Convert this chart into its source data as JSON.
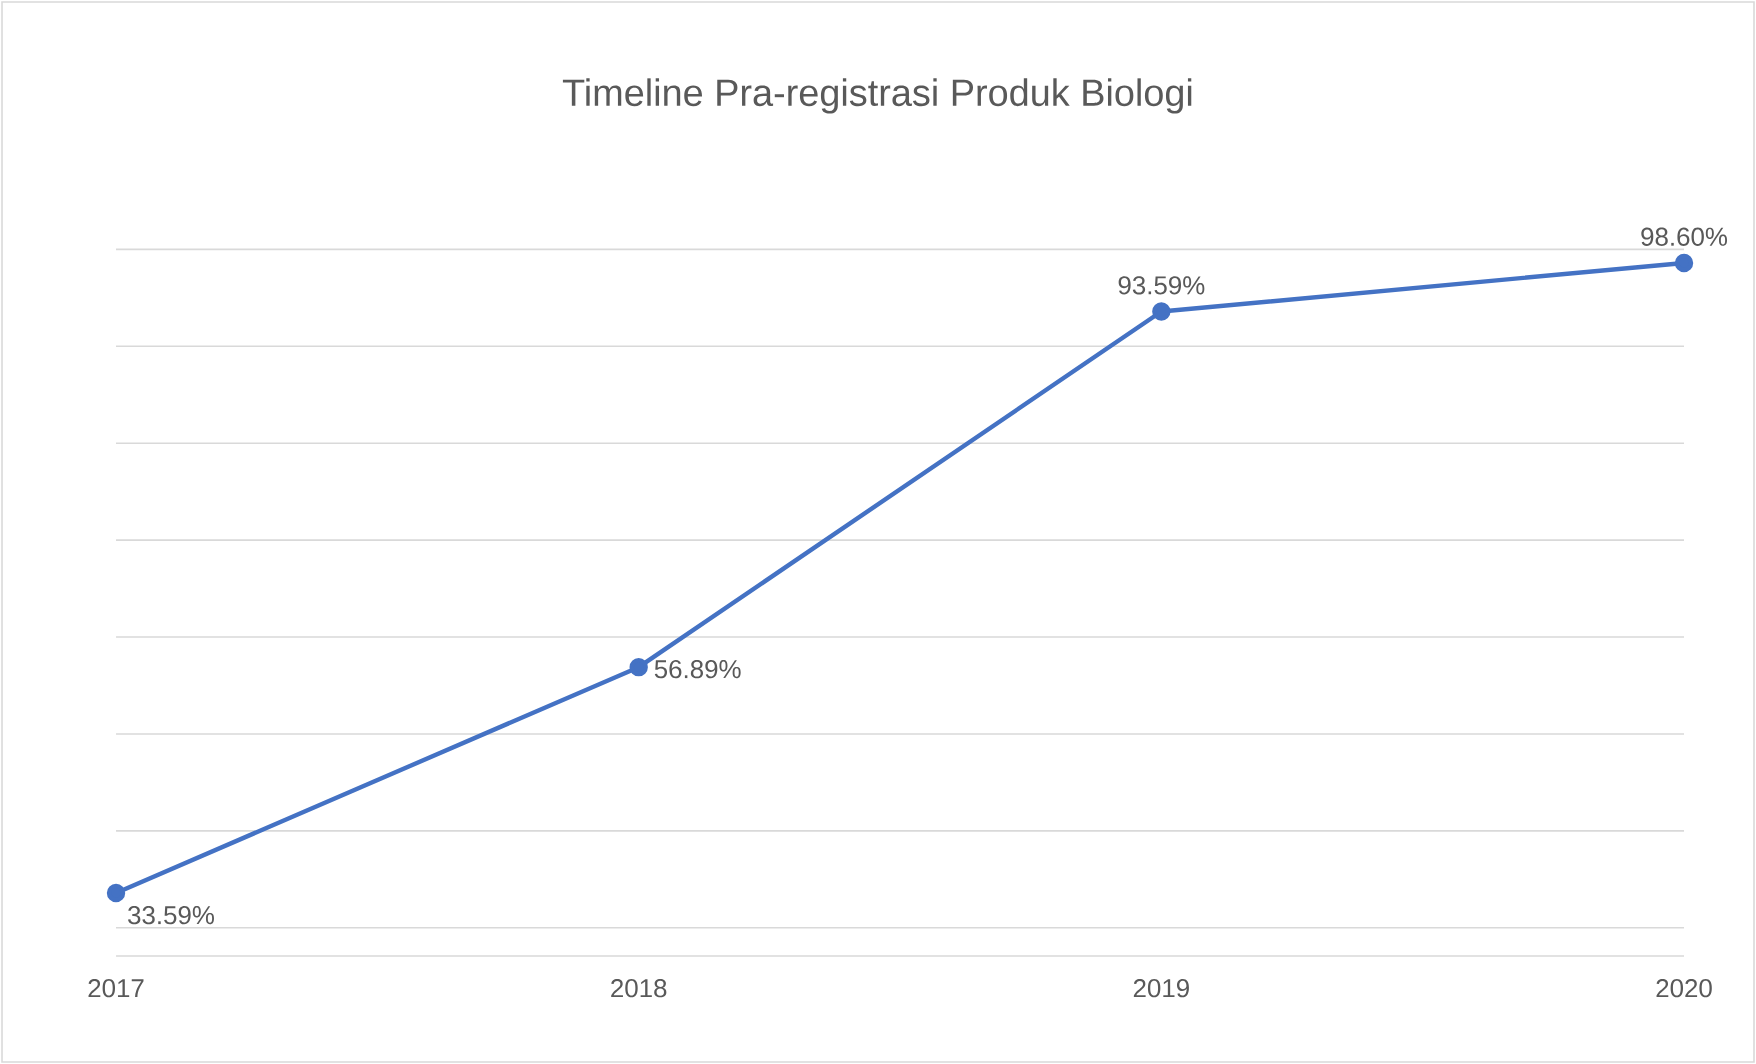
{
  "chart_data": {
    "type": "line",
    "title": "Timeline Pra-registrasi Produk Biologi",
    "categories": [
      "2017",
      "2018",
      "2019",
      "2020"
    ],
    "series": [
      {
        "color": "#4472c4",
        "values": [
          33.59,
          56.89,
          93.59,
          98.6
        ],
        "value_labels": [
          "33.59%",
          "56.89%",
          "93.59%",
          "98.60%"
        ]
      }
    ],
    "grid": "y",
    "tick_labels": "x",
    "marker": "circle",
    "line_style": "solid"
  }
}
